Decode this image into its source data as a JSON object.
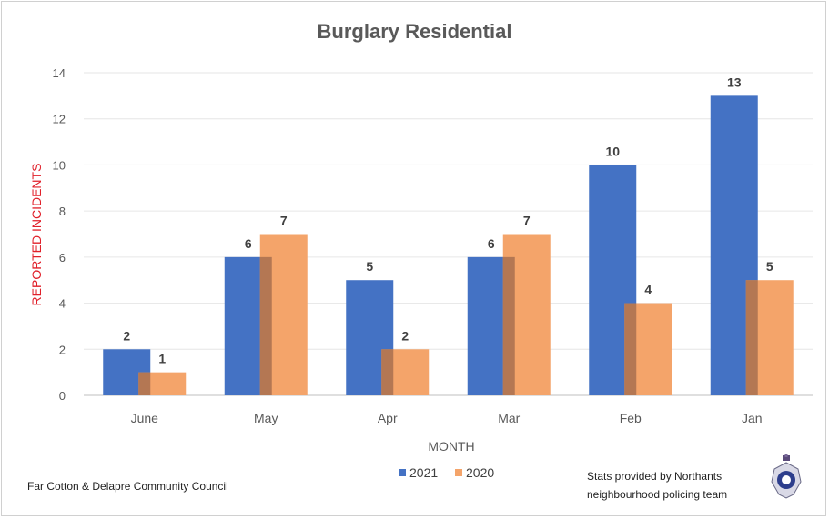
{
  "chart_data": {
    "type": "bar",
    "title": "Burglary Residential",
    "xlabel": "MONTH",
    "ylabel": "REPORTED INCIDENTS",
    "categories": [
      "June",
      "May",
      "Apr",
      "Mar",
      "Feb",
      "Jan"
    ],
    "series": [
      {
        "name": "2021",
        "values": [
          2,
          6,
          5,
          6,
          10,
          13
        ],
        "color": "#4472C4"
      },
      {
        "name": "2020",
        "values": [
          1,
          7,
          2,
          7,
          4,
          5
        ],
        "color": "#F4A46A"
      }
    ],
    "ylim": [
      0,
      14
    ],
    "yticks": [
      0,
      2,
      4,
      6,
      8,
      10,
      12,
      14
    ],
    "grid": true,
    "legend_position": "bottom",
    "ylabel_color": "#E0202A"
  },
  "footer": {
    "left_text": "Far Cotton & Delapre Community Council",
    "right_line1": "Stats provided by Northants",
    "right_line2": "neighbourhood policing team",
    "badge_icon": "police-crest-icon"
  }
}
